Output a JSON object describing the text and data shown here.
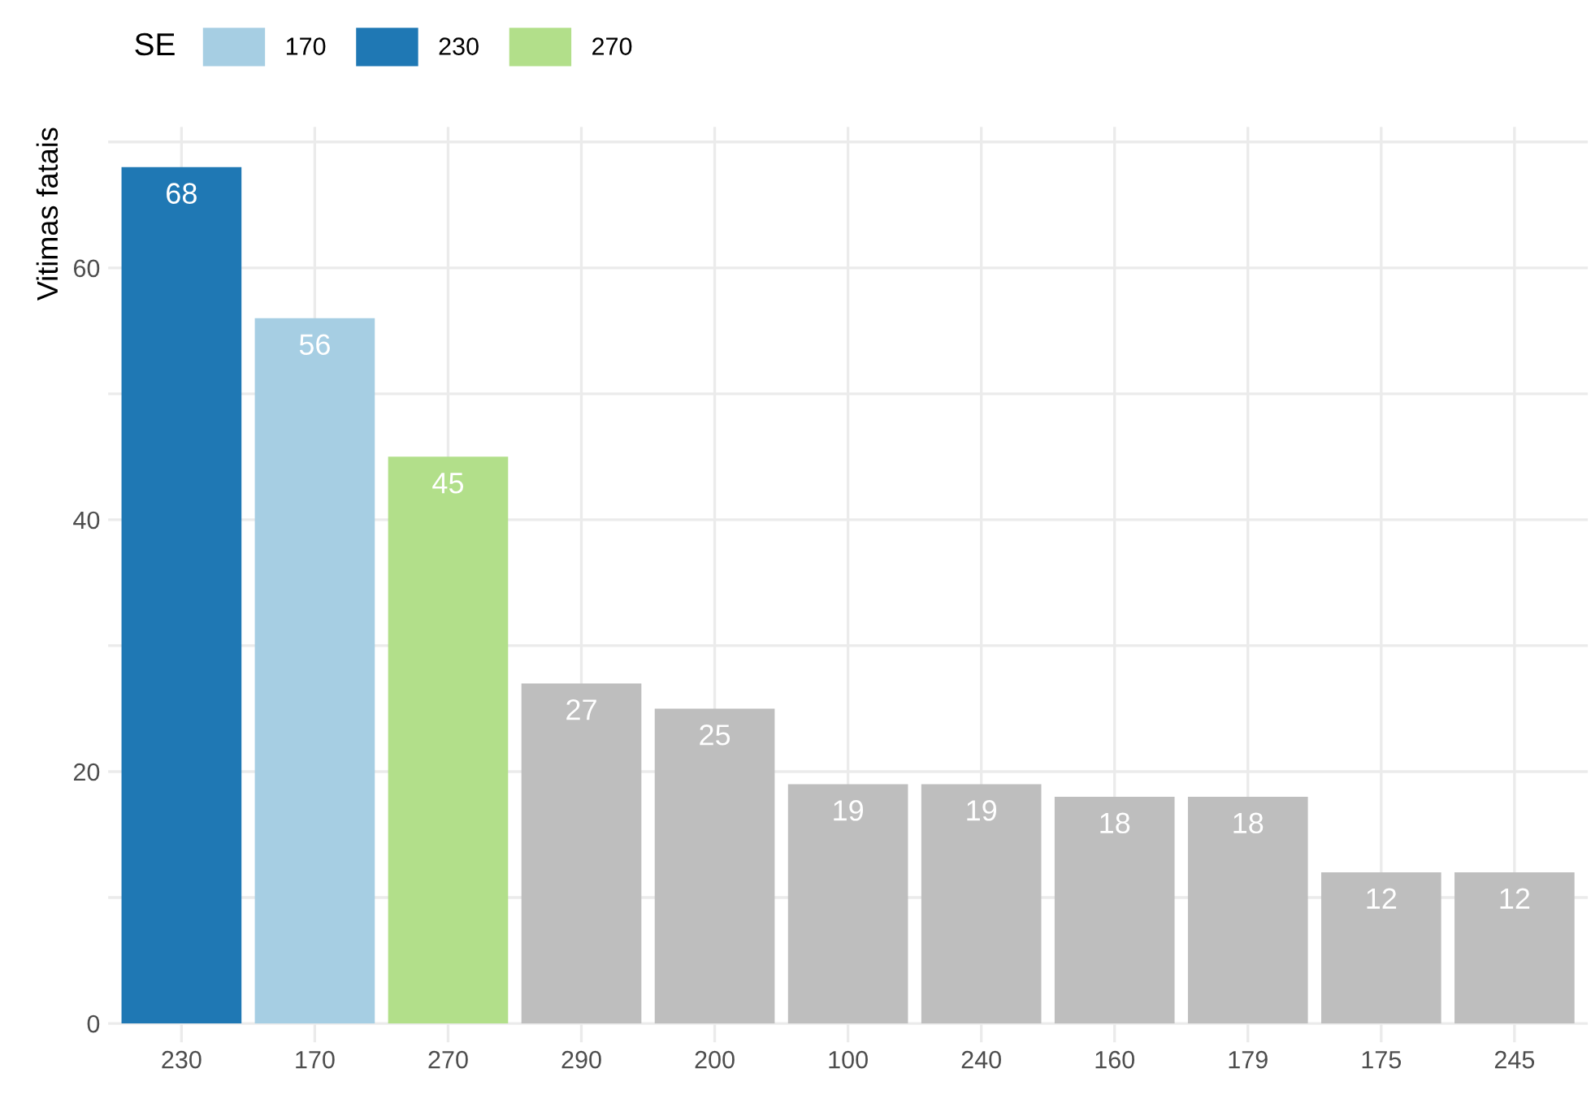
{
  "chart_data": {
    "type": "bar",
    "ylabel": "Vitimas fatais",
    "legend_title": "SE",
    "categories": [
      "230",
      "170",
      "270",
      "290",
      "200",
      "100",
      "240",
      "160",
      "179",
      "175",
      "245"
    ],
    "series": [
      {
        "name": "170",
        "color": "#a6cee3",
        "values": [
          null,
          56,
          null,
          null,
          null,
          null,
          null,
          null,
          null,
          null,
          null
        ]
      },
      {
        "name": "230",
        "color": "#1f78b4",
        "values": [
          68,
          null,
          null,
          null,
          null,
          null,
          null,
          null,
          null,
          null,
          null
        ]
      },
      {
        "name": "270",
        "color": "#b2df8a",
        "values": [
          null,
          null,
          45,
          null,
          null,
          null,
          null,
          null,
          null,
          null,
          null
        ]
      },
      {
        "color": "#bebebe",
        "values": [
          null,
          null,
          null,
          27,
          25,
          19,
          19,
          18,
          18,
          12,
          12
        ]
      }
    ],
    "ylim": [
      -1.5,
      71.2
    ],
    "yticks": [
      0,
      {
        "value": 10,
        "label": null
      },
      20,
      {
        "value": 30,
        "label": null
      },
      40,
      {
        "value": 50,
        "label": null
      },
      60,
      {
        "value": 70,
        "label": null
      }
    ],
    "grid": true,
    "legend": "top left",
    "data_labels": true
  }
}
